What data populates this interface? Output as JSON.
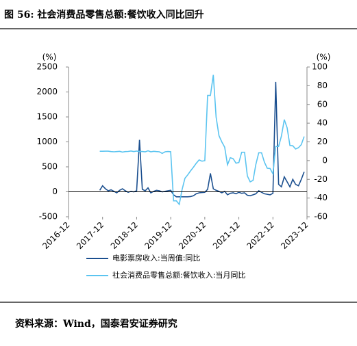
{
  "title": "图 56: 社会消费品零售总额:餐饮收入同比回升",
  "source": "资料来源：Wind，国泰君安证券研究",
  "chart_data": {
    "type": "line",
    "y_unit": "(%)",
    "y2_unit": "(%)",
    "x": [
      "2017-11",
      "2017-12",
      "2018-01",
      "2018-02",
      "2018-03",
      "2018-04",
      "2018-05",
      "2018-06",
      "2018-07",
      "2018-08",
      "2018-09",
      "2018-10",
      "2018-11",
      "2018-12",
      "2019-01",
      "2019-02",
      "2019-03",
      "2019-04",
      "2019-05",
      "2019-06",
      "2019-07",
      "2019-08",
      "2019-09",
      "2019-10",
      "2019-11",
      "2019-12",
      "2020-01",
      "2020-02",
      "2020-03",
      "2020-04",
      "2020-05",
      "2020-06",
      "2020-07",
      "2020-08",
      "2020-09",
      "2020-10",
      "2020-11",
      "2020-12",
      "2021-01",
      "2021-02",
      "2021-03",
      "2021-04",
      "2021-05",
      "2021-06",
      "2021-07",
      "2021-08",
      "2021-09",
      "2021-10",
      "2021-11",
      "2021-12",
      "2022-01",
      "2022-02",
      "2022-03",
      "2022-04",
      "2022-05",
      "2022-06",
      "2022-07",
      "2022-08",
      "2022-09",
      "2022-10",
      "2022-11",
      "2022-12",
      "2023-01",
      "2023-02",
      "2023-03",
      "2023-04",
      "2023-05",
      "2023-06",
      "2023-07",
      "2023-08",
      "2023-09",
      "2023-10",
      "2023-11"
    ],
    "series": [
      {
        "name": "电影票房收入:当周值:同比",
        "color": "#1b4f8f",
        "values": [
          30,
          120,
          60,
          20,
          40,
          10,
          -20,
          30,
          60,
          20,
          -10,
          10,
          0,
          20,
          1040,
          50,
          20,
          80,
          -20,
          10,
          30,
          20,
          0,
          10,
          20,
          30,
          -60,
          -100,
          -100,
          -100,
          -100,
          -100,
          -95,
          -80,
          -40,
          -20,
          -15,
          -10,
          50,
          370,
          60,
          30,
          10,
          -20,
          10,
          -60,
          -30,
          -20,
          -40,
          -10,
          -30,
          -20,
          -70,
          -80,
          -60,
          -40,
          20,
          -10,
          -40,
          -50,
          -60,
          -30,
          2200,
          150,
          100,
          300,
          200,
          100,
          250,
          150,
          120,
          250,
          400
        ]
      },
      {
        "name": "社会消费品零售总额:餐饮收入:当月同比",
        "color": "#5bc4f0",
        "axis": "y2",
        "values": [
          10,
          10,
          10.1,
          10.1,
          9.6,
          9.4,
          9.6,
          9.9,
          9.1,
          9.6,
          9.8,
          10.3,
          9.6,
          10.2,
          9.7,
          9.7,
          9.3,
          10.5,
          9.4,
          9.9,
          9.6,
          9.4,
          7.7,
          9.4,
          9.7,
          9.5,
          -43,
          -43,
          -46.8,
          -31.1,
          -18.9,
          -15.2,
          -11,
          -7,
          -2.9,
          0.8,
          -0.6,
          -0.1,
          69.6,
          69.6,
          91.6,
          46.4,
          26.6,
          20,
          14.3,
          -4.5,
          3.1,
          2,
          -2.7,
          -2.1,
          8.9,
          8.9,
          -16.4,
          -22.7,
          -21.1,
          -4,
          8.4,
          8.4,
          -1.7,
          -8.1,
          -8.4,
          -14.1,
          15.1,
          15.1,
          26.3,
          43.8,
          35.1,
          16.1,
          15.8,
          12.4,
          13.8,
          17.1,
          25.8
        ]
      }
    ],
    "xlim": [
      "2016-12",
      "2023-12"
    ],
    "xticks": [
      "2016-12",
      "2017-12",
      "2018-12",
      "2019-12",
      "2020-12",
      "2021-12",
      "2022-12",
      "2023-12"
    ],
    "ylim": [
      -500,
      2500
    ],
    "yticks": [
      -500,
      0,
      500,
      1000,
      1500,
      2000,
      2500
    ],
    "y2lim": [
      -60,
      100
    ],
    "y2ticks": [
      -60,
      -40,
      -20,
      0,
      20,
      40,
      60,
      80,
      100
    ]
  }
}
